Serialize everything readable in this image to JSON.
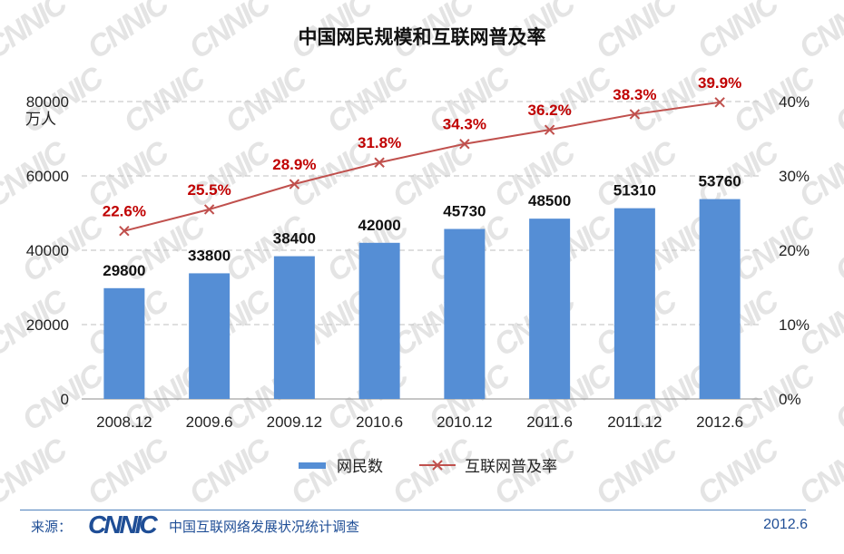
{
  "chart_data": {
    "type": "bar+line",
    "title": "中国网民规模和互联网普及率",
    "categories": [
      "2008.12",
      "2009.6",
      "2009.12",
      "2010.6",
      "2010.12",
      "2011.6",
      "2011.12",
      "2012.6"
    ],
    "series": [
      {
        "name": "网民数",
        "type": "bar",
        "axis": "left",
        "color": "#558ed5",
        "values": [
          29800,
          33800,
          38400,
          42000,
          45730,
          48500,
          51310,
          53760
        ]
      },
      {
        "name": "互联网普及率",
        "type": "line",
        "axis": "right",
        "color": "#c0504d",
        "values": [
          22.6,
          25.5,
          28.9,
          31.8,
          34.3,
          36.2,
          38.3,
          39.9
        ],
        "labels": [
          "22.6%",
          "25.5%",
          "28.9%",
          "31.8%",
          "34.3%",
          "36.2%",
          "38.3%",
          "39.9%"
        ]
      }
    ],
    "ylabel_left": "万人",
    "ylim_left": [
      0,
      80000
    ],
    "yticks_left": [
      "0",
      "20000",
      "40000",
      "60000",
      "80000"
    ],
    "ylim_right": [
      0,
      40
    ],
    "yticks_right": [
      "0%",
      "10%",
      "20%",
      "30%",
      "40%"
    ],
    "grid": true,
    "legend": "bottom-center"
  },
  "source": {
    "label": "来源：",
    "logo_text": "CNNIC",
    "name": "中国互联网络发展状况统计调查",
    "date": "2012.6"
  },
  "watermark_text": "CNNIC"
}
